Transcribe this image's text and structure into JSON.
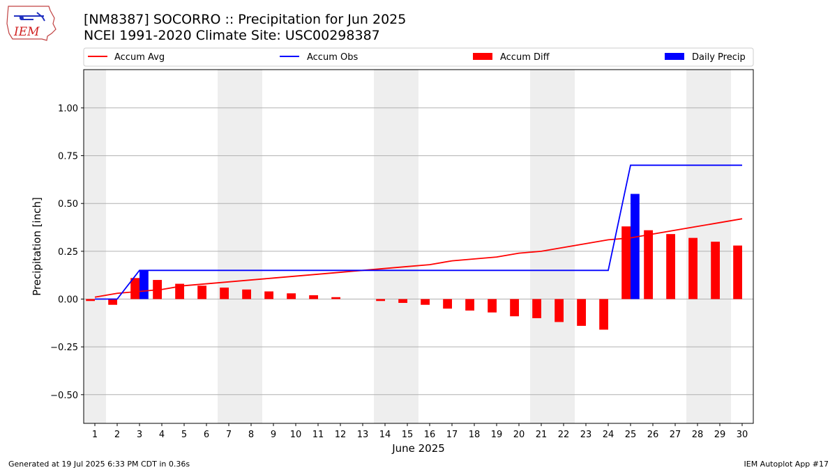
{
  "header": {
    "title_line1": "[NM8387] SOCORRO :: Precipitation for Jun 2025",
    "title_line2": "NCEI 1991-2020 Climate Site: USC00298387"
  },
  "logo": {
    "text": "IEM"
  },
  "footer": {
    "generated": "Generated at 19 Jul 2025 6:33 PM CDT in 0.36s",
    "app": "IEM Autoplot App #17"
  },
  "colors": {
    "avg": "#ff0000",
    "obs": "#0000ff",
    "diff": "#ff0000",
    "daily": "#0000ff",
    "weekend_band": "#eeeeee",
    "grid": "#b0b0b0"
  },
  "chart_data": {
    "type": "bar",
    "xlabel": "June 2025",
    "ylabel": "Precipitation [inch]",
    "xlim": [
      0.5,
      30.5
    ],
    "ylim": [
      -0.65,
      1.2
    ],
    "yticks": [
      -0.5,
      -0.25,
      0.0,
      0.25,
      0.5,
      0.75,
      1.0
    ],
    "ytick_labels": [
      "−0.50",
      "−0.25",
      "0.00",
      "0.25",
      "0.50",
      "0.75",
      "1.00"
    ],
    "grid": "horizontal",
    "legend_placement": "top",
    "days": [
      1,
      2,
      3,
      4,
      5,
      6,
      7,
      8,
      9,
      10,
      11,
      12,
      13,
      14,
      15,
      16,
      17,
      18,
      19,
      20,
      21,
      22,
      23,
      24,
      25,
      26,
      27,
      28,
      29,
      30
    ],
    "weekend_days": [
      1,
      7,
      8,
      14,
      15,
      21,
      22,
      28,
      29
    ],
    "series": [
      {
        "name": "Accum Avg",
        "kind": "line",
        "values": [
          0.01,
          0.03,
          0.04,
          0.05,
          0.07,
          0.08,
          0.09,
          0.1,
          0.11,
          0.12,
          0.13,
          0.14,
          0.15,
          0.16,
          0.17,
          0.18,
          0.2,
          0.21,
          0.22,
          0.24,
          0.25,
          0.27,
          0.29,
          0.31,
          0.32,
          0.34,
          0.36,
          0.38,
          0.4,
          0.42
        ]
      },
      {
        "name": "Accum Obs",
        "kind": "line",
        "values": [
          0.0,
          0.0,
          0.15,
          0.15,
          0.15,
          0.15,
          0.15,
          0.15,
          0.15,
          0.15,
          0.15,
          0.15,
          0.15,
          0.15,
          0.15,
          0.15,
          0.15,
          0.15,
          0.15,
          0.15,
          0.15,
          0.15,
          0.15,
          0.15,
          0.7,
          0.7,
          0.7,
          0.7,
          0.7,
          0.7
        ]
      },
      {
        "name": "Accum Diff",
        "kind": "bar",
        "values": [
          -0.01,
          -0.03,
          0.11,
          0.1,
          0.08,
          0.07,
          0.06,
          0.05,
          0.04,
          0.03,
          0.02,
          0.01,
          0.0,
          -0.01,
          -0.02,
          -0.03,
          -0.05,
          -0.06,
          -0.07,
          -0.09,
          -0.1,
          -0.12,
          -0.14,
          -0.16,
          0.38,
          0.36,
          0.34,
          0.32,
          0.3,
          0.28
        ]
      },
      {
        "name": "Daily Precip",
        "kind": "bar",
        "values": [
          0,
          0,
          0.15,
          0,
          0,
          0,
          0,
          0,
          0,
          0,
          0,
          0,
          0,
          0,
          0,
          0,
          0,
          0,
          0,
          0,
          0,
          0,
          0,
          0,
          0.55,
          0,
          0,
          0,
          0,
          0
        ]
      }
    ]
  }
}
